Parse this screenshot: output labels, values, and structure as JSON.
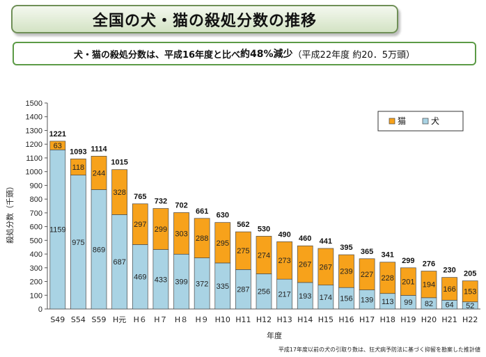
{
  "title": "全国の犬・猫の殺処分数の推移",
  "summary": {
    "prefix": "犬・猫の殺処分数は、平成16年度と比べ",
    "highlight": "約48%減少",
    "suffix": "（平成22年度 約20．5万頭）"
  },
  "footnote": "平成17年度以前の犬の引取り数は、狂犬病予防法に基づく抑留を勘案した推計値",
  "chart_data": {
    "type": "bar",
    "stacked": true,
    "categories": [
      "S49",
      "S54",
      "S59",
      "H元",
      "H６",
      "H７",
      "H８",
      "H９",
      "H10",
      "H11",
      "H12",
      "H13",
      "H14",
      "H15",
      "H16",
      "H17",
      "H18",
      "H19",
      "H20",
      "H21",
      "H22"
    ],
    "series": [
      {
        "name": "犬",
        "color": "#a9d3e4",
        "values": [
          1159,
          975,
          869,
          687,
          469,
          433,
          399,
          372,
          335,
          287,
          256,
          217,
          193,
          174,
          156,
          139,
          113,
          99,
          82,
          64,
          52
        ]
      },
      {
        "name": "猫",
        "color": "#f7a21b",
        "values": [
          63,
          118,
          244,
          328,
          297,
          299,
          303,
          288,
          295,
          275,
          274,
          273,
          267,
          267,
          239,
          227,
          228,
          201,
          194,
          166,
          153
        ]
      }
    ],
    "totals": [
      1221,
      1093,
      1114,
      1015,
      765,
      732,
      702,
      661,
      630,
      562,
      530,
      490,
      460,
      441,
      395,
      365,
      341,
      299,
      276,
      230,
      205
    ],
    "xlabel": "年度",
    "ylabel": "殺処分数（千頭）",
    "ylim": [
      0,
      1500
    ],
    "yticks": [
      0,
      100,
      200,
      300,
      400,
      500,
      600,
      700,
      800,
      900,
      1000,
      1100,
      1200,
      1300,
      1400,
      1500
    ],
    "legend_position": "top-right",
    "grid": false
  }
}
